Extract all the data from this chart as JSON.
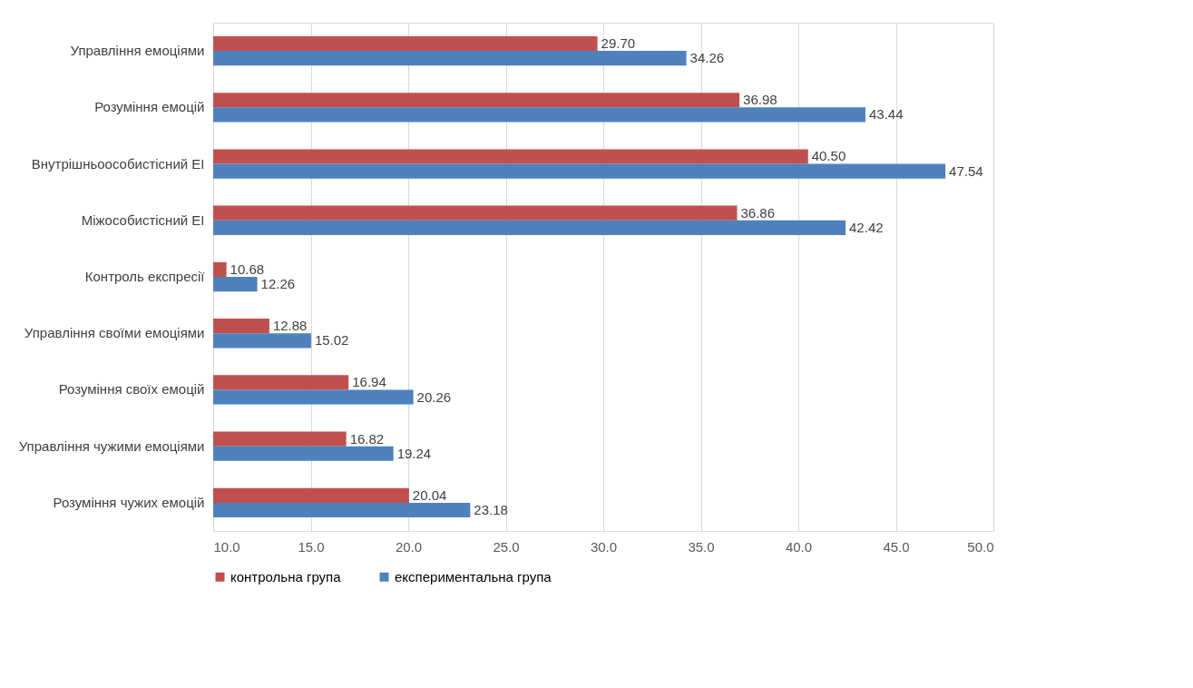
{
  "chart_data": {
    "type": "bar",
    "orientation": "horizontal",
    "categories": [
      "Управління емоціями",
      "Розуміння емоцій",
      "Внутрішньоособистісний ЕІ",
      "Міжособистісний ЕІ",
      "Контроль експресії",
      "Управління своїми емоціями",
      "Розуміння своїх емоцій",
      "Управління чужими емоціями",
      "Розуміння чужих емоцій"
    ],
    "series": [
      {
        "name": "контрольна група",
        "color": "#c0504d",
        "values": [
          29.7,
          36.98,
          40.5,
          36.86,
          10.68,
          12.88,
          16.94,
          16.82,
          20.04
        ],
        "value_labels": [
          "29.70",
          "36.98",
          "40.50",
          "36.86",
          "10.68",
          "12.88",
          "16.94",
          "16.82",
          "20.04"
        ]
      },
      {
        "name": "експериментальна група",
        "color": "#4f81bd",
        "values": [
          34.26,
          43.44,
          47.54,
          42.42,
          12.26,
          15.02,
          20.26,
          19.24,
          23.18
        ],
        "value_labels": [
          "34.26",
          "43.44",
          "47.54",
          "42.42",
          "12.26",
          "15.02",
          "20.26",
          "19.24",
          "23.18"
        ]
      }
    ],
    "xlim": [
      10,
      50
    ],
    "xticks": [
      {
        "value": 10,
        "label": "10.0"
      },
      {
        "value": 15,
        "label": "15.0"
      },
      {
        "value": 20,
        "label": "20.0"
      },
      {
        "value": 25,
        "label": "25.0"
      },
      {
        "value": 30,
        "label": "30.0"
      },
      {
        "value": 35,
        "label": "35.0"
      },
      {
        "value": 40,
        "label": "40.0"
      },
      {
        "value": 45,
        "label": "45.0"
      },
      {
        "value": 50,
        "label": "50.0"
      }
    ],
    "grid": "x",
    "legend": "bottom"
  }
}
